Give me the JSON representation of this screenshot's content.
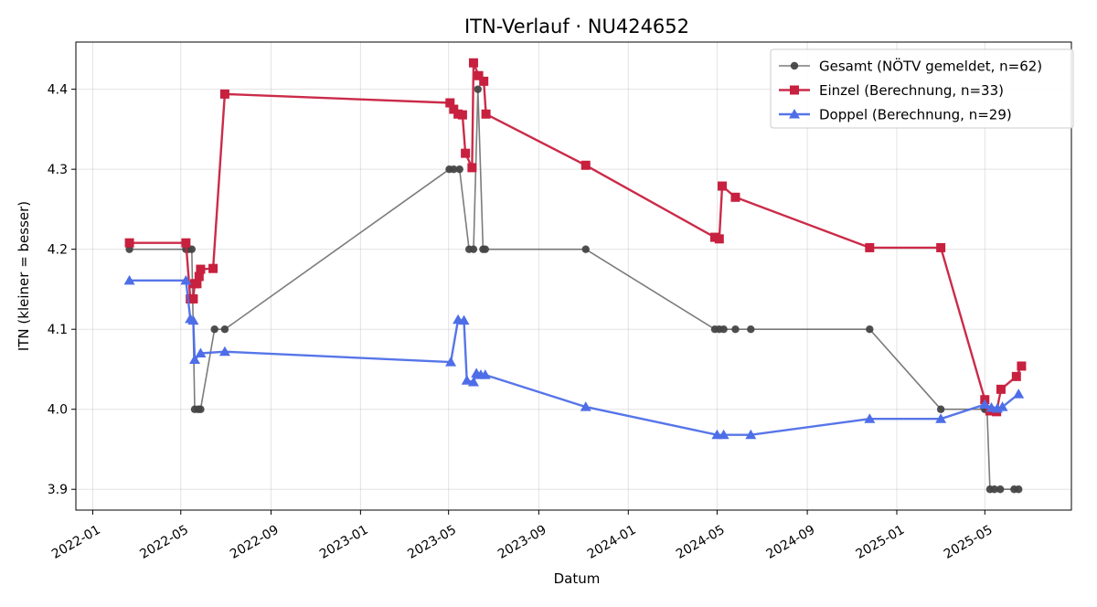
{
  "chart_data": {
    "type": "line",
    "title": "ITN-Verlauf · NU424652",
    "xlabel": "Datum",
    "ylabel": "ITN  (kleiner = besser)",
    "xlim": [
      "2021-12-09",
      "2025-08-27"
    ],
    "ylim": [
      3.874,
      4.459
    ],
    "x_ticks": [
      "2022-01",
      "2022-05",
      "2022-09",
      "2023-01",
      "2023-05",
      "2023-09",
      "2024-01",
      "2024-05",
      "2024-09",
      "2025-01",
      "2025-05"
    ],
    "y_ticks": [
      3.9,
      4.0,
      4.1,
      4.2,
      4.3,
      4.4
    ],
    "grid": true,
    "legend_position": "top-right",
    "series": [
      {
        "name": "Gesamt (NÖTV gemeldet, n=62)",
        "color": "#444444",
        "marker": "circle",
        "points": [
          [
            "2022-02-20",
            4.2
          ],
          [
            "2022-05-08",
            4.2
          ],
          [
            "2022-05-12",
            4.2
          ],
          [
            "2022-05-16",
            4.2
          ],
          [
            "2022-05-20",
            4.0
          ],
          [
            "2022-05-25",
            4.0
          ],
          [
            "2022-05-28",
            4.0
          ],
          [
            "2022-06-16",
            4.1
          ],
          [
            "2022-06-30",
            4.1
          ],
          [
            "2023-05-02",
            4.3
          ],
          [
            "2023-05-08",
            4.3
          ],
          [
            "2023-05-16",
            4.3
          ],
          [
            "2023-05-29",
            4.2
          ],
          [
            "2023-06-04",
            4.2
          ],
          [
            "2023-06-10",
            4.4
          ],
          [
            "2023-06-17",
            4.2
          ],
          [
            "2023-06-20",
            4.2
          ],
          [
            "2023-11-04",
            4.2
          ],
          [
            "2024-04-28",
            4.1
          ],
          [
            "2024-05-04",
            4.1
          ],
          [
            "2024-05-10",
            4.1
          ],
          [
            "2024-05-26",
            4.1
          ],
          [
            "2024-06-16",
            4.1
          ],
          [
            "2024-11-25",
            4.1
          ],
          [
            "2025-03-02",
            4.0
          ],
          [
            "2025-05-01",
            4.0
          ],
          [
            "2025-05-04",
            4.0
          ],
          [
            "2025-05-08",
            3.9
          ],
          [
            "2025-05-14",
            3.9
          ],
          [
            "2025-05-22",
            3.9
          ],
          [
            "2025-06-10",
            3.9
          ],
          [
            "2025-06-16",
            3.9
          ]
        ]
      },
      {
        "name": "Einzel (Berechnung, n=33)",
        "color": "#c8203f",
        "marker": "square",
        "points": [
          [
            "2022-02-20",
            4.208
          ],
          [
            "2022-05-08",
            4.208
          ],
          [
            "2022-05-14",
            4.138
          ],
          [
            "2022-05-18",
            4.138
          ],
          [
            "2022-05-20",
            4.157
          ],
          [
            "2022-05-23",
            4.157
          ],
          [
            "2022-05-26",
            4.166
          ],
          [
            "2022-05-28",
            4.175
          ],
          [
            "2022-06-14",
            4.176
          ],
          [
            "2022-06-30",
            4.394
          ],
          [
            "2023-05-03",
            4.383
          ],
          [
            "2023-05-08",
            4.375
          ],
          [
            "2023-05-14",
            4.369
          ],
          [
            "2023-05-20",
            4.368
          ],
          [
            "2023-05-24",
            4.32
          ],
          [
            "2023-06-02",
            4.302
          ],
          [
            "2023-06-04",
            4.433
          ],
          [
            "2023-06-11",
            4.417
          ],
          [
            "2023-06-18",
            4.41
          ],
          [
            "2023-06-21",
            4.369
          ],
          [
            "2023-11-04",
            4.305
          ],
          [
            "2024-04-28",
            4.215
          ],
          [
            "2024-05-04",
            4.213
          ],
          [
            "2024-05-08",
            4.279
          ],
          [
            "2024-05-26",
            4.265
          ],
          [
            "2024-11-25",
            4.202
          ],
          [
            "2025-03-02",
            4.202
          ],
          [
            "2025-05-01",
            4.012
          ],
          [
            "2025-05-08",
            3.998
          ],
          [
            "2025-05-17",
            3.997
          ],
          [
            "2025-05-23",
            4.025
          ],
          [
            "2025-06-13",
            4.041
          ],
          [
            "2025-06-20",
            4.054
          ]
        ]
      },
      {
        "name": "Doppel (Berechnung, n=29)",
        "color": "#4e6ee8",
        "marker": "triangle",
        "points": [
          [
            "2022-02-20",
            4.161
          ],
          [
            "2022-05-08",
            4.161
          ],
          [
            "2022-05-14",
            4.113
          ],
          [
            "2022-05-18",
            4.111
          ],
          [
            "2022-05-20",
            4.062
          ],
          [
            "2022-05-28",
            4.07
          ],
          [
            "2022-06-30",
            4.072
          ],
          [
            "2023-05-04",
            4.059
          ],
          [
            "2023-05-14",
            4.112
          ],
          [
            "2023-05-22",
            4.111
          ],
          [
            "2023-05-26",
            4.036
          ],
          [
            "2023-06-04",
            4.034
          ],
          [
            "2023-06-08",
            4.045
          ],
          [
            "2023-06-14",
            4.043
          ],
          [
            "2023-06-20",
            4.043
          ],
          [
            "2023-11-04",
            4.003
          ],
          [
            "2024-05-01",
            3.968
          ],
          [
            "2024-05-10",
            3.968
          ],
          [
            "2024-06-16",
            3.968
          ],
          [
            "2024-11-25",
            3.988
          ],
          [
            "2025-03-02",
            3.988
          ],
          [
            "2025-05-01",
            4.006
          ],
          [
            "2025-05-10",
            4.002
          ],
          [
            "2025-05-18",
            4.001
          ],
          [
            "2025-05-25",
            4.003
          ],
          [
            "2025-06-16",
            4.019
          ]
        ]
      }
    ]
  }
}
